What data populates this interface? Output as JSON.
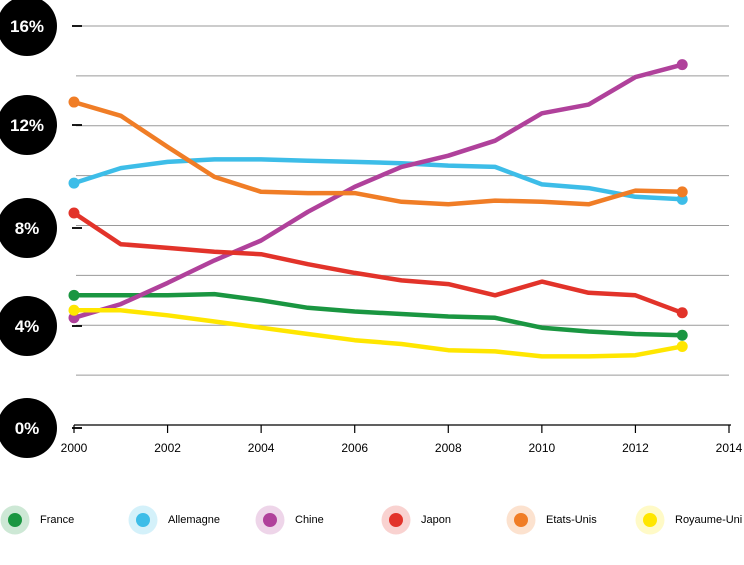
{
  "chart_data": {
    "type": "line",
    "title": "",
    "xlabel": "",
    "ylabel": "",
    "x": [
      2000,
      2001,
      2002,
      2003,
      2004,
      2005,
      2006,
      2007,
      2008,
      2009,
      2010,
      2011,
      2012,
      2013
    ],
    "xlim": [
      2000,
      2014
    ],
    "xticks": [
      "2000",
      "2002",
      "2004",
      "2006",
      "2008",
      "2010",
      "2012",
      "2014"
    ],
    "ylim": [
      0,
      16
    ],
    "yticks": [
      "16%",
      "12%",
      "8%",
      "4%",
      "0%"
    ],
    "grid": true,
    "legend_position": "bottom",
    "series": [
      {
        "name": "France",
        "color": "#1a9641",
        "values": [
          5.2,
          5.2,
          5.2,
          5.25,
          5.0,
          4.7,
          4.55,
          4.45,
          4.35,
          4.3,
          3.9,
          3.75,
          3.65,
          3.6
        ]
      },
      {
        "name": "Allemagne",
        "color": "#3dbde8",
        "values": [
          9.7,
          10.3,
          10.55,
          10.65,
          10.65,
          10.6,
          10.55,
          10.5,
          10.4,
          10.35,
          9.65,
          9.5,
          9.15,
          9.05
        ]
      },
      {
        "name": "Chine",
        "color": "#b0419b",
        "values": [
          4.3,
          4.85,
          5.7,
          6.6,
          7.4,
          8.55,
          9.55,
          10.35,
          10.8,
          11.4,
          12.5,
          12.85,
          13.95,
          14.45
        ]
      },
      {
        "name": "Japon",
        "color": "#e2332a",
        "values": [
          8.5,
          7.25,
          7.1,
          6.95,
          6.85,
          6.45,
          6.1,
          5.8,
          5.65,
          5.2,
          5.75,
          5.3,
          5.2,
          4.5
        ]
      },
      {
        "name": "Etats-Unis",
        "color": "#f07d26",
        "values": [
          12.95,
          12.4,
          11.15,
          9.95,
          9.35,
          9.3,
          9.3,
          8.95,
          8.85,
          9.0,
          8.95,
          8.85,
          9.4,
          9.35
        ]
      },
      {
        "name": "Royaume-Uni",
        "color": "#ffe600",
        "values": [
          4.6,
          4.6,
          4.4,
          4.15,
          3.9,
          3.65,
          3.4,
          3.25,
          3.0,
          2.95,
          2.75,
          2.75,
          2.8,
          3.15
        ]
      }
    ]
  }
}
